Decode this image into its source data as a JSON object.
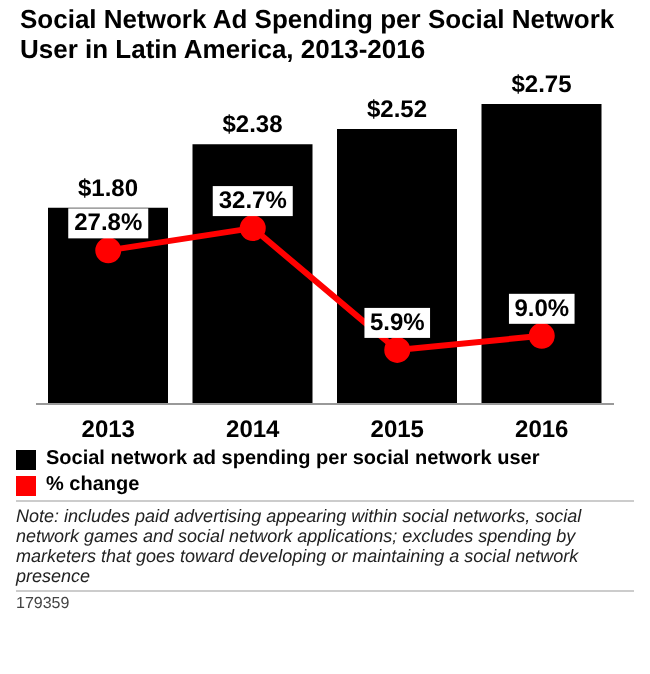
{
  "chart_data": {
    "type": "bar",
    "title": "Social Network Ad Spending per Social Network User in Latin America, 2013-2016",
    "categories": [
      "2013",
      "2014",
      "2015",
      "2016"
    ],
    "series": [
      {
        "name": "Social network ad spending per social network user",
        "color": "#000000",
        "values": [
          1.8,
          2.38,
          2.52,
          2.75
        ],
        "value_labels": [
          "$1.80",
          "$2.38",
          "$2.52",
          "$2.75"
        ]
      },
      {
        "name": "% change",
        "type": "line",
        "axis": "y2",
        "color": "#ff0000",
        "values": [
          27.8,
          32.7,
          5.9,
          9.0
        ],
        "value_labels": [
          "27.8%",
          "32.7%",
          "5.9%",
          "9.0%"
        ]
      }
    ],
    "ylim": [
      0,
      2.75
    ],
    "y2lim": [
      -6,
      60
    ],
    "tick_labels": "x",
    "legend": "bottom",
    "marker": "circle",
    "annotations": [
      "Note: includes paid advertising appearing within social networks, social network games and social network applications; excludes spending by marketers that goes toward developing or maintaining a social network presence",
      "179359"
    ]
  }
}
